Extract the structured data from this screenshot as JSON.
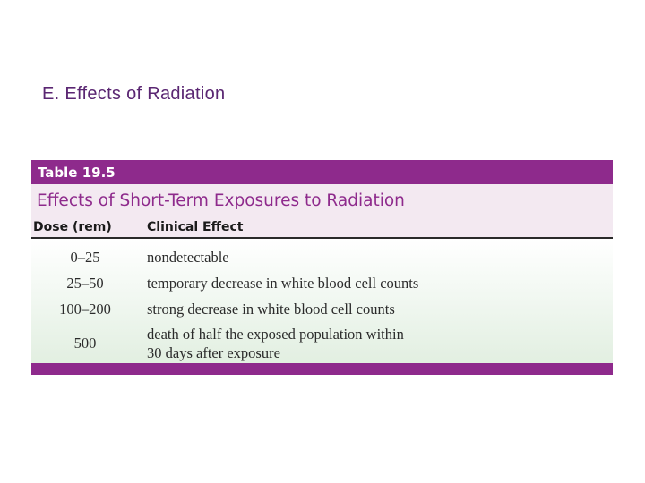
{
  "slide": {
    "title": "E. Effects of Radiation"
  },
  "table": {
    "label": "Table 19.5",
    "caption": "Effects of Short-Term Exposures to Radiation",
    "headers": {
      "dose": "Dose (rem)",
      "effect": "Clinical Effect"
    },
    "rows": [
      {
        "dose": "0–25",
        "effect": "nondetectable"
      },
      {
        "dose": "25–50",
        "effect": "temporary decrease in white blood cell counts"
      },
      {
        "dose": "100–200",
        "effect": "strong decrease in white blood cell counts"
      },
      {
        "dose": "500",
        "effect": "death of half the exposed population within",
        "effect_line2": "30 days after exposure"
      }
    ]
  },
  "colors": {
    "accent": "#8e2a8c",
    "title_text": "#5a2672",
    "caption_bg": "#f3e9f1",
    "body_bg_bottom": "#e2efe1"
  }
}
